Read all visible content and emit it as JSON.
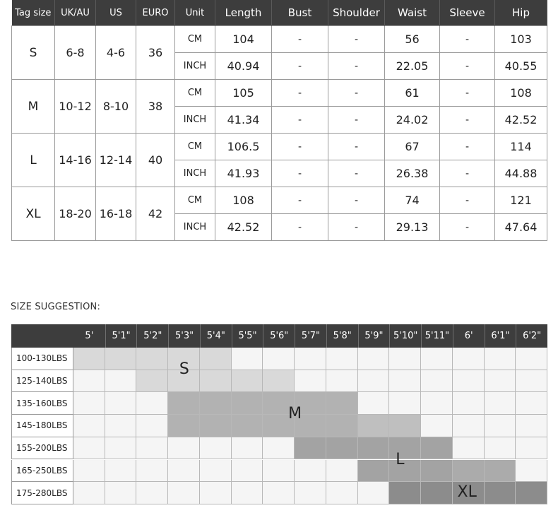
{
  "size_chart": {
    "headers": [
      "Tag size",
      "UK/AU",
      "US",
      "EURO",
      "Unit",
      "Length",
      "Bust",
      "Shoulder",
      "Waist",
      "Sleeve",
      "Hip"
    ],
    "rows": [
      {
        "tag": "S",
        "uk_au": "6-8",
        "us": "4-6",
        "euro": "36",
        "cm": {
          "unit": "CM",
          "length": "104",
          "bust": "-",
          "shoulder": "-",
          "waist": "56",
          "sleeve": "-",
          "hip": "103"
        },
        "inch": {
          "unit": "INCH",
          "length": "40.94",
          "bust": "-",
          "shoulder": "-",
          "waist": "22.05",
          "sleeve": "-",
          "hip": "40.55"
        }
      },
      {
        "tag": "M",
        "uk_au": "10-12",
        "us": "8-10",
        "euro": "38",
        "cm": {
          "unit": "CM",
          "length": "105",
          "bust": "-",
          "shoulder": "-",
          "waist": "61",
          "sleeve": "-",
          "hip": "108"
        },
        "inch": {
          "unit": "INCH",
          "length": "41.34",
          "bust": "-",
          "shoulder": "-",
          "waist": "24.02",
          "sleeve": "-",
          "hip": "42.52"
        }
      },
      {
        "tag": "L",
        "uk_au": "14-16",
        "us": "12-14",
        "euro": "40",
        "cm": {
          "unit": "CM",
          "length": "106.5",
          "bust": "-",
          "shoulder": "-",
          "waist": "67",
          "sleeve": "-",
          "hip": "114"
        },
        "inch": {
          "unit": "INCH",
          "length": "41.93",
          "bust": "-",
          "shoulder": "-",
          "waist": "26.38",
          "sleeve": "-",
          "hip": "44.88"
        }
      },
      {
        "tag": "XL",
        "uk_au": "18-20",
        "us": "16-18",
        "euro": "42",
        "cm": {
          "unit": "CM",
          "length": "108",
          "bust": "-",
          "shoulder": "-",
          "waist": "74",
          "sleeve": "-",
          "hip": "121"
        },
        "inch": {
          "unit": "INCH",
          "length": "42.52",
          "bust": "-",
          "shoulder": "-",
          "waist": "29.13",
          "sleeve": "-",
          "hip": "47.64"
        }
      }
    ]
  },
  "suggestion": {
    "title": "SIZE SUGGESTION:",
    "heights": [
      "5'",
      "5'1\"",
      "5'2\"",
      "5'3\"",
      "5'4\"",
      "5'5\"",
      "5'6\"",
      "5'7\"",
      "5'8\"",
      "5'9\"",
      "5'10\"",
      "5'11\"",
      "6'",
      "6'1\"",
      "6'2\""
    ],
    "weights": [
      "100-130LBS",
      "125-140LBS",
      "135-160LBS",
      "145-180LBS",
      "155-200LBS",
      "165-250LBS",
      "175-280LBS"
    ],
    "shade_colors": {
      "S": "#d9d9d9",
      "M": "#b2b2b2",
      "M2": "#bfbfbf",
      "L": "#a3a3a3",
      "L2": "#ababab",
      "XL": "#8c8c8c",
      "XL2": "#a0a0a0",
      "empty": "#f5f5f5"
    },
    "regions": [
      {
        "size": "S",
        "cells": [
          [
            0,
            0
          ],
          [
            0,
            1
          ],
          [
            0,
            2
          ],
          [
            0,
            3
          ],
          [
            0,
            4
          ],
          [
            1,
            2
          ],
          [
            1,
            3
          ],
          [
            1,
            4
          ],
          [
            1,
            5
          ],
          [
            1,
            6
          ]
        ],
        "shade": "S"
      },
      {
        "size": "M",
        "cells": [
          [
            2,
            3
          ],
          [
            2,
            4
          ],
          [
            2,
            5
          ],
          [
            2,
            6
          ],
          [
            2,
            7
          ],
          [
            2,
            8
          ],
          [
            3,
            3
          ],
          [
            3,
            4
          ],
          [
            3,
            5
          ],
          [
            3,
            6
          ],
          [
            3,
            7
          ],
          [
            3,
            8
          ]
        ],
        "shade": "M"
      },
      {
        "size": "M",
        "cells": [
          [
            3,
            9
          ],
          [
            3,
            10
          ]
        ],
        "shade": "M2"
      },
      {
        "size": "L",
        "cells": [
          [
            4,
            7
          ],
          [
            4,
            8
          ],
          [
            4,
            9
          ],
          [
            4,
            10
          ],
          [
            4,
            11
          ],
          [
            5,
            9
          ],
          [
            5,
            10
          ],
          [
            5,
            11
          ]
        ],
        "shade": "L"
      },
      {
        "size": "L",
        "cells": [
          [
            5,
            12
          ],
          [
            5,
            13
          ]
        ],
        "shade": "L2"
      },
      {
        "size": "XL",
        "cells": [
          [
            6,
            10
          ],
          [
            6,
            11
          ],
          [
            6,
            12
          ],
          [
            6,
            13
          ],
          [
            6,
            14
          ]
        ],
        "shade": "XL"
      }
    ],
    "labels": [
      {
        "text": "S",
        "row": 0.5,
        "col": 3.25
      },
      {
        "text": "M",
        "row": 2.5,
        "col": 6.7
      },
      {
        "text": "L",
        "row": 4.55,
        "col": 10.1
      },
      {
        "text": "XL",
        "row": 6.0,
        "col": 12.05
      }
    ]
  }
}
